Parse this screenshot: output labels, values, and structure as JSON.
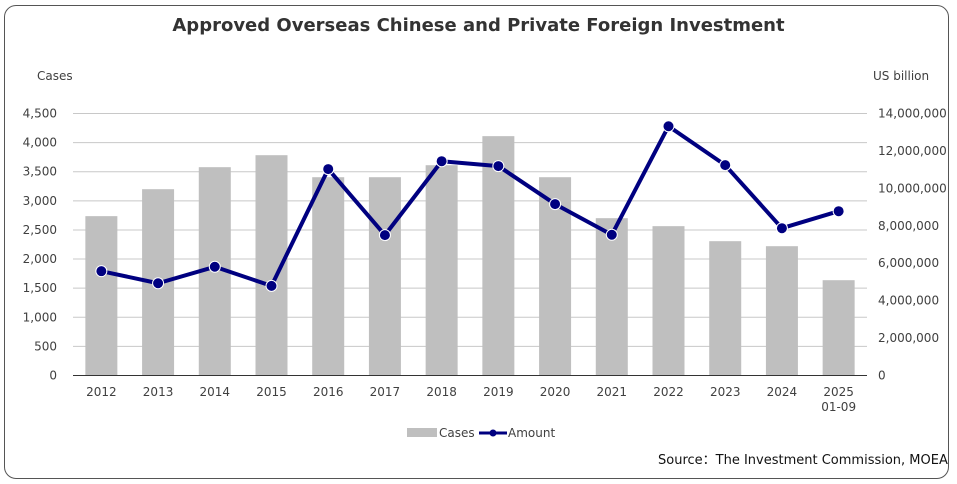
{
  "chart_data": {
    "type": "bar+line",
    "title": "Approved Overseas Chinese and Private Foreign Investment",
    "categories": [
      "2012",
      "2013",
      "2014",
      "2015",
      "2016",
      "2017",
      "2018",
      "2019",
      "2020",
      "2021",
      "2022",
      "2023",
      "2024",
      "2025\n01-09"
    ],
    "series": [
      {
        "name": "Cases",
        "type": "bar",
        "axis": "left",
        "color": "#bfbfbf",
        "values": [
          2737,
          3200,
          3578,
          3784,
          3406,
          3406,
          3612,
          4111,
          3406,
          2702,
          2565,
          2307,
          2221,
          1637
        ]
      },
      {
        "name": "Amount",
        "type": "line",
        "axis": "right",
        "color": "#000080",
        "values": [
          5575000,
          4930000,
          5810000,
          4790000,
          11030000,
          7500000,
          11450000,
          11190000,
          9160000,
          7520000,
          13320000,
          11240000,
          7870000,
          8780000
        ]
      }
    ],
    "left_axis": {
      "label": "Cases",
      "range": [
        0,
        4500
      ],
      "ticks": [
        "0",
        "500",
        "1,000",
        "1,500",
        "2,000",
        "2,500",
        "3,000",
        "3,500",
        "4,000",
        "4,500"
      ]
    },
    "right_axis": {
      "label": "US billion",
      "range": [
        0,
        14000000
      ],
      "ticks": [
        "0",
        "2,000,000",
        "4,000,000",
        "6,000,000",
        "8,000,000",
        "10,000,000",
        "12,000,000",
        "14,000,000"
      ]
    },
    "grid": true,
    "legend": "bottom"
  },
  "source": "Source：The Investment Commission, MOEA"
}
